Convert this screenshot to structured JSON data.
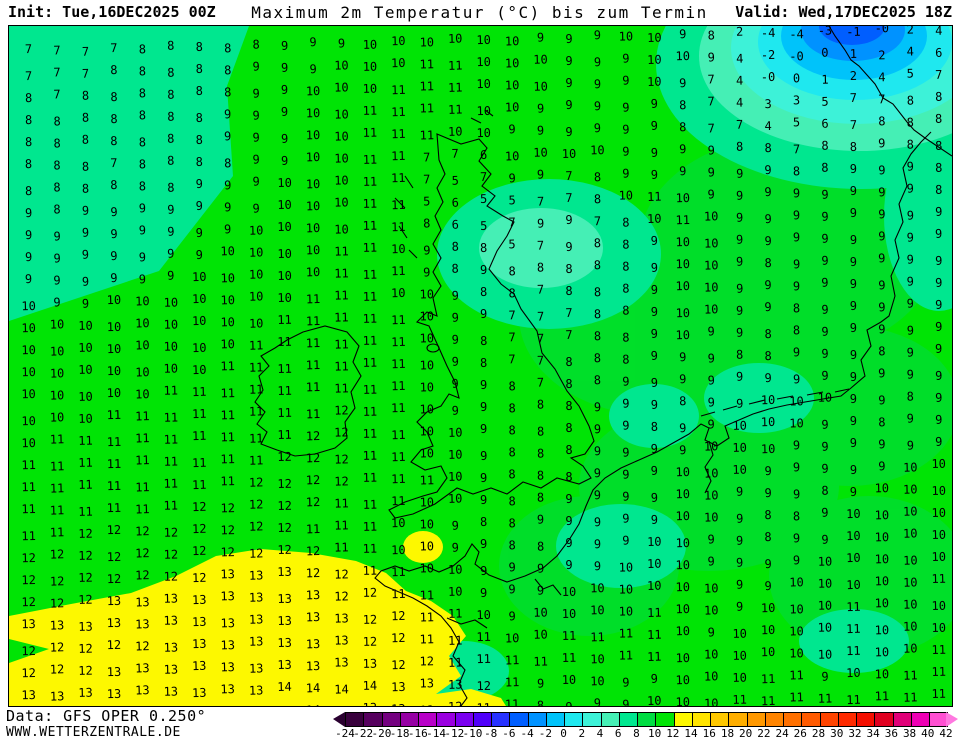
{
  "header": {
    "init": "Init: Tue,16DEC2025 00Z",
    "title": "Maximum 2m Temperatur (°C) bis zum Termin",
    "valid": "Valid: Wed,17DEC2025 18Z"
  },
  "footer": {
    "data_source": "Data: GFS OPER 0.250°",
    "website": "WWW.WETTERZENTRALE.DE"
  },
  "colorbar": {
    "labels": [
      "-24",
      "-22",
      "-20",
      "-18",
      "-16",
      "-14",
      "-12",
      "-10",
      "-8",
      "-6",
      "-4",
      "-2",
      "0",
      "2",
      "4",
      "6",
      "8",
      "10",
      "12",
      "14",
      "16",
      "18",
      "20",
      "22",
      "24",
      "26",
      "28",
      "30",
      "32",
      "34",
      "36",
      "38",
      "40",
      "42"
    ],
    "segment_colors": [
      "#38003c",
      "#56005e",
      "#740080",
      "#9600a4",
      "#b800c8",
      "#9a00e0",
      "#7a00f0",
      "#5000fa",
      "#2832ff",
      "#005eff",
      "#0092ff",
      "#00c3fa",
      "#1fe8ef",
      "#3df2d8",
      "#45efb5",
      "#00e78f",
      "#00dd42",
      "#00e405",
      "#fdf800",
      "#ffe400",
      "#ffc800",
      "#ffae00",
      "#ff9800",
      "#ff8400",
      "#ff7000",
      "#ff5a00",
      "#ff4400",
      "#ff2a00",
      "#f50f00",
      "#e00020",
      "#e00078",
      "#ee00b4",
      "#ff50d2"
    ],
    "left_arrow_color": "#2a0030",
    "right_arrow_color": "#ff78e0"
  },
  "map": {
    "region_colors": {
      "green_base": "#00e405",
      "green_dull": "#00d94d",
      "spring": "#00e78f",
      "mint": "#45efb5",
      "aqua": "#3df2d8",
      "cyan": "#1fe8ef",
      "light_blue": "#00c3fa",
      "blue": "#0092ff",
      "deep_blue": "#005eff",
      "yellow": "#fdf800",
      "coast": "#000000"
    },
    "temperature_rows": [
      "7 7 7 7 8 8 8 8 8 9 9 9 10 10 10 10 10 10 9 9 9 10 10 9 8 2 -4 -4 -3 -1 -0 2 4",
      "7 7 7 8 8 8 8 8 9 9 9 10 10 10 11 11 10 10 10 9 9 9 10 10 9 4 -2 -0 0 1 2 4 6",
      "8 7 8 8 8 8 8 8 9 9 10 10 10 11 11 11 10 10 10 9 9 9 10 9 7 4 -0 0 1 2 4 5 7",
      "8 8 8 8 8 8 8 9 9 9 10 10 11 11 11 11 10 10 9 9 9 9 9 8 7 4 3 3 5 7 7 8 8",
      "8 8 8 8 8 8 8 9 9 9 10 10 11 11 11 10 10 9 9 9 9 9 9 8 7 7 4 5 6 7 8 8 8",
      "8 8 8 7 8 8 8 8 9 9 10 10 11 11 7 7 6 10 10 10 10 9 9 9 9 8 8 7 8 8 9 8 8",
      "8 8 8 8 8 8 9 9 9 10 10 10 11 11 7 5 7 9 9 7 8 9 9 9 9 9 9 8 8 9 9 9 8",
      "9 8 9 9 9 9 9 9 9 10 10 10 11 11 5 6 5 5 7 7 8 10 11 10 9 9 9 9 9 9 9 9 8",
      "9 9 9 9 9 9 9 9 10 10 10 10 11 11 8 6 5 7 9 9 7 8 10 11 10 9 9 9 9 9 9 9 9",
      "9 9 9 9 9 9 9 10 10 10 10 11 11 10 9 8 8 5 7 9 8 8 9 10 10 9 9 9 9 9 9 9 9",
      "9 9 9 9 9 9 10 10 10 10 10 11 11 11 9 8 9 8 8 8 8 8 9 10 10 9 8 9 9 9 9 9 9",
      "10 9 9 10 10 10 10 10 10 10 11 11 11 10 10 9 8 8 7 8 8 8 9 10 10 9 9 9 9 9 9 9 9",
      "10 10 10 10 10 10 10 10 10 11 11 11 11 11 10 9 9 7 7 7 8 8 9 10 10 9 9 8 9 9 9 9 9",
      "10 10 10 10 10 10 10 10 11 11 11 11 11 11 10 9 8 7 7 7 8 8 9 10 9 9 8 8 9 9 9 9 9",
      "10 10 10 10 10 10 10 11 11 11 11 11 11 11 10 9 8 7 7 8 8 8 9 9 9 8 8 9 9 9 8 9 9",
      "10 10 10 10 10 11 11 11 11 11 11 11 11 11 10 9 9 8 7 8 8 9 9 9 9 9 9 9 9 9 9 9 9",
      "10 10 10 11 11 11 11 11 11 11 11 12 11 11 10 9 9 8 8 8 9 9 9 8 9 9 10 10 10 9 9 8 9",
      "10 11 11 11 11 11 11 11 11 11 12 12 11 11 10 10 9 8 8 8 9 9 8 9 9 10 10 10 9 9 8 9 9",
      "11 11 11 11 11 11 11 11 11 12 12 12 11 11 10 10 9 8 8 8 9 9 9 9 10 10 10 9 9 9 9 9 9",
      "11 11 11 11 11 11 11 11 12 12 12 12 11 11 11 10 9 8 8 8 9 9 9 10 10 10 9 9 9 9 9 10 10",
      "11 11 11 11 11 11 12 12 12 12 12 11 11 11 10 10 9 8 8 9 9 9 9 10 10 9 9 9 8 9 10 10 10",
      "11 11 12 12 12 12 12 12 12 12 11 11 11 10 10 9 8 8 9 9 9 9 9 10 10 9 8 8 9 10 10 10 10",
      "12 12 12 12 12 12 12 12 12 12 12 11 11 10 10 9 9 8 8 9 9 9 10 10 9 9 8 9 9 10 10 10 10",
      "12 12 12 12 12 12 12 13 13 13 12 12 11 11 10 10 9 9 9 9 9 10 10 10 9 9 9 9 10 10 10 10 10",
      "12 12 12 13 13 13 13 13 13 13 13 12 12 11 11 10 9 9 9 10 10 10 10 10 10 9 9 10 10 10 10 10 11",
      "13 13 13 13 13 13 13 13 13 13 13 13 12 12 11 11 10 9 10 10 10 10 11 10 10 9 10 10 10 11 10 10 10",
      "12 12 12 12 12 13 13 13 13 13 13 13 12 12 11 11 11 10 10 11 11 11 11 10 9 10 10 10 10 11 10 10 10",
      "12 12 12 13 13 13 13 13 13 13 13 13 13 12 12 11 11 11 11 11 10 11 11 10 10 10 10 10 10 11 10 10 11",
      "13 13 13 13 13 13 13 13 13 14 14 14 14 13 13 13 12 11 9 10 10 9 9 10 10 10 11 11 9 10 10 11 11",
      "13 13 13 13 13 14 14 14 14 14 14 13 13 13 13 12 11 11 8 9 9 9 10 10 10 11 11 11 11 11 11 11 11"
    ]
  }
}
